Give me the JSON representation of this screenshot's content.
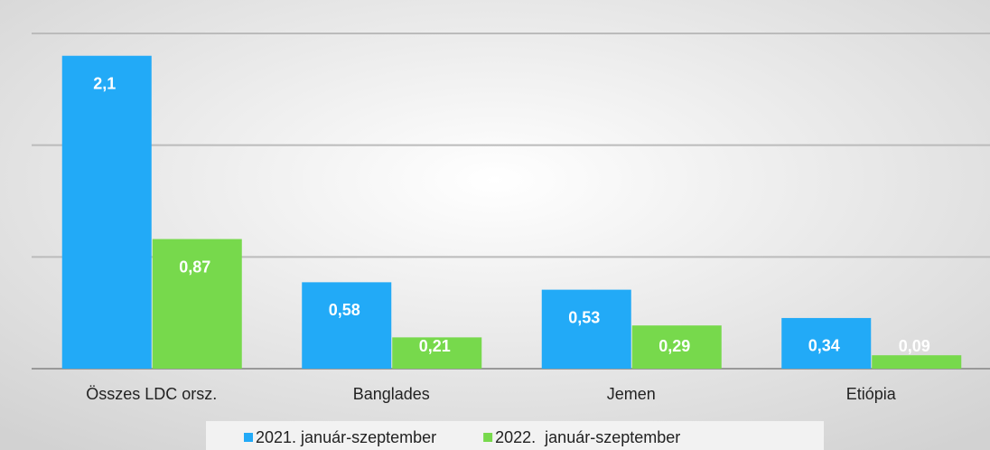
{
  "chart_data": {
    "type": "bar",
    "categories": [
      "Összes LDC orsz.",
      "Banglades",
      "Jemen",
      "Etiópia"
    ],
    "series": [
      {
        "name": "2021. január-szeptember",
        "color": "#22aaf7",
        "values": [
          2.1,
          0.58,
          0.53,
          0.34
        ],
        "value_labels": [
          "2,1",
          "0,58",
          "0,53",
          "0,34"
        ]
      },
      {
        "name": "2022.  január-szeptember",
        "color": "#77d94c",
        "values": [
          0.87,
          0.21,
          0.29,
          0.09
        ],
        "value_labels": [
          "0,87",
          "0,21",
          "0,29",
          "0,09"
        ]
      }
    ],
    "ylim": [
      0,
      2.25
    ],
    "yticks": [
      0,
      0.75,
      1.5,
      2.25
    ],
    "grid": true,
    "legend": "bottom"
  }
}
